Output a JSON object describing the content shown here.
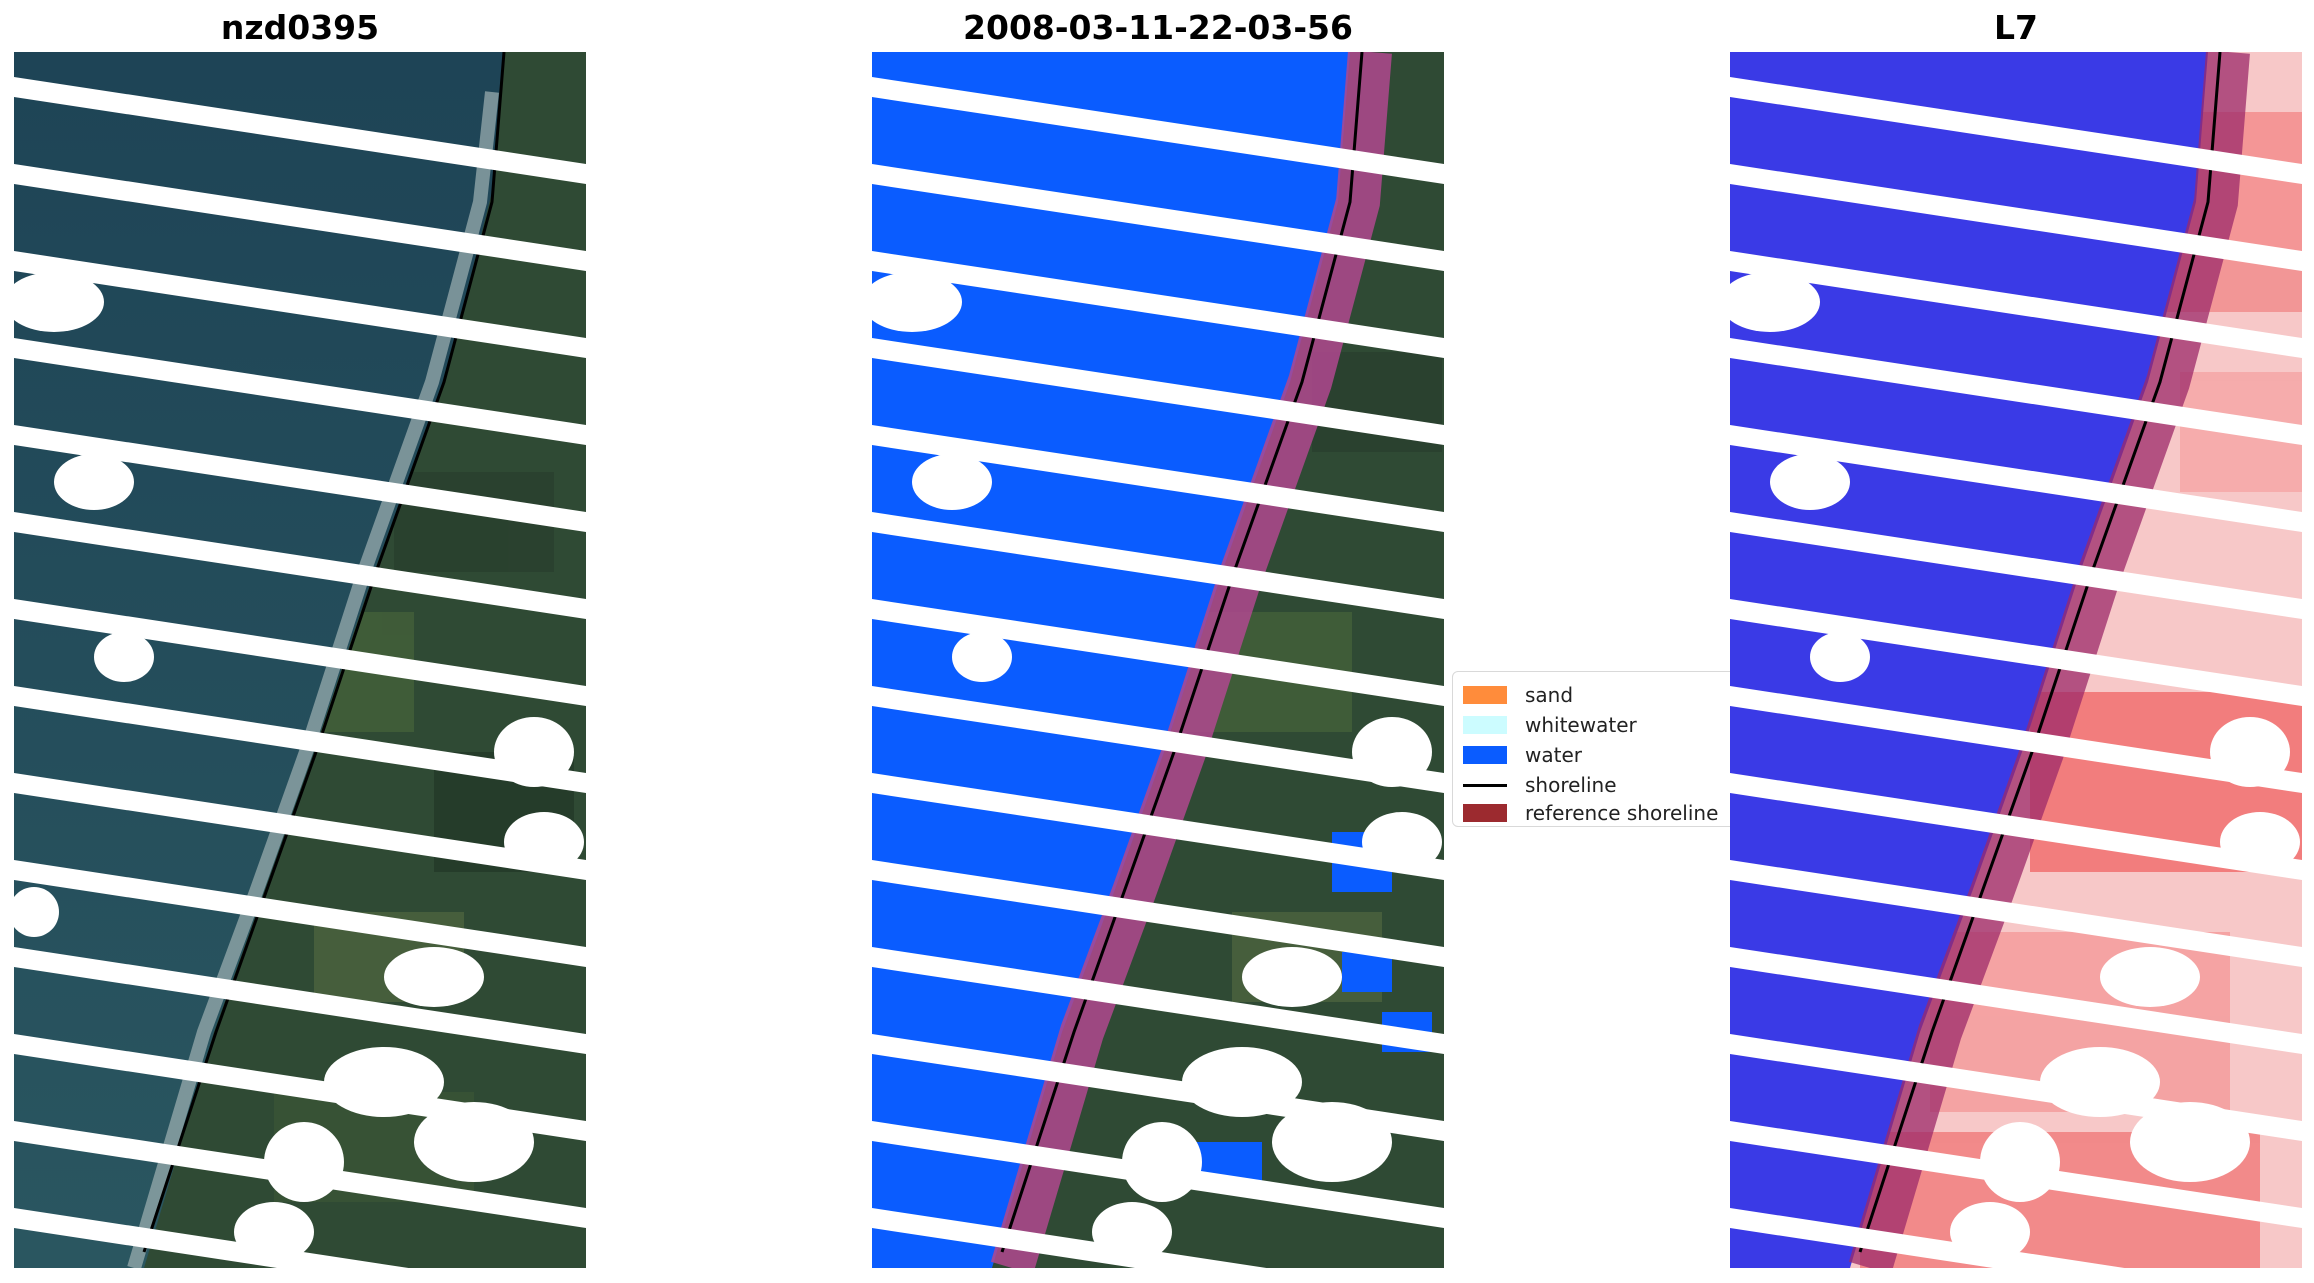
{
  "panels": {
    "rgb": {
      "title": "nzd0395"
    },
    "classification": {
      "title": "2008-03-11-22-03-56"
    },
    "index": {
      "title": "L7"
    }
  },
  "legend": {
    "items": [
      {
        "label": "sand",
        "color": "#ff8c3b",
        "kind": "patch"
      },
      {
        "label": "whitewater",
        "color": "#ccfcff",
        "kind": "patch"
      },
      {
        "label": "water",
        "color": "#0a5cff",
        "kind": "patch"
      },
      {
        "label": "shoreline",
        "color": "#000000",
        "kind": "line"
      },
      {
        "label": "reference shoreline",
        "color": "#9c2a2f",
        "kind": "patch"
      }
    ]
  },
  "colors": {
    "ocean": "#1f4352",
    "land": "#2d4a33",
    "water_class": "#0a5cff",
    "reference_band": "#b0488f",
    "index_water": "#3a3ae6",
    "index_land": "#f08888"
  }
}
